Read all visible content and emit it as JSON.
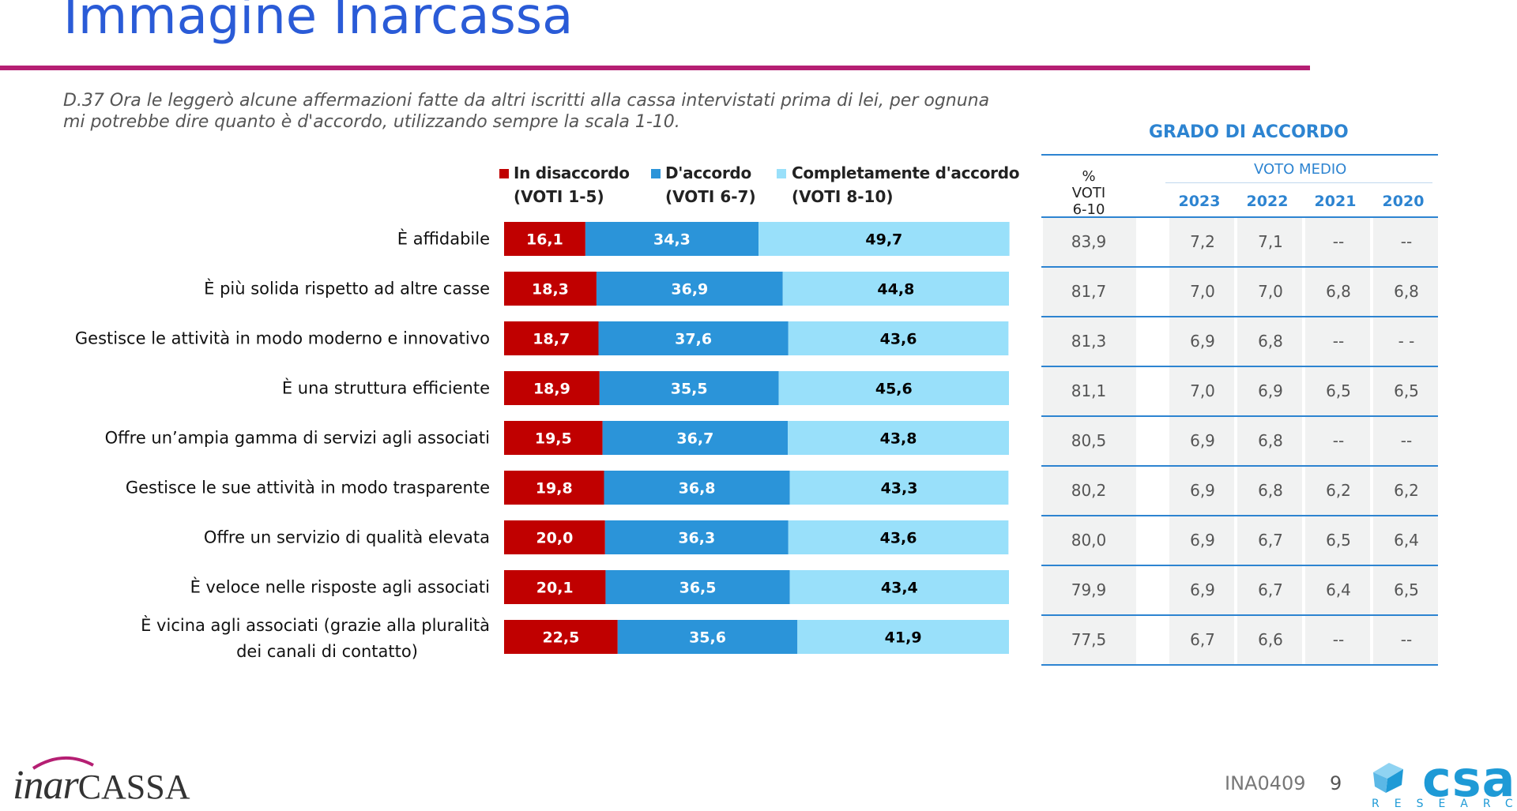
{
  "header": {
    "title": "Immagine Inarcassa",
    "question": "D.37  Ora le leggerò alcune affermazioni fatte da altri iscritti alla cassa intervistati prima di lei, per ognuna mi potrebbe dire quanto è d'accordo, utilizzando sempre la scala 1-10."
  },
  "colors": {
    "disaccordo": "#c00000",
    "accordo": "#2b94d9",
    "completamente": "#99e0fa",
    "title": "#2a5bd7",
    "rule": "#b51f73",
    "table_accent": "#2d84d1"
  },
  "chart_data": {
    "type": "bar",
    "orientation": "horizontal",
    "stacked": true,
    "categories": [
      "È affidabile",
      "È più solida rispetto ad altre casse",
      "Gestisce le attività in modo moderno e innovativo",
      "È una struttura efficiente",
      "Offre un’ampia gamma di servizi agli associati",
      "Gestisce le sue attività in modo trasparente",
      "Offre un servizio di qualità elevata",
      "È veloce nelle risposte agli associati",
      "È vicina agli associati (grazie alla pluralità dei canali di contatto)"
    ],
    "category_lines": [
      [
        "È affidabile"
      ],
      [
        "È più solida rispetto ad altre casse"
      ],
      [
        "Gestisce le attività in modo moderno e innovativo"
      ],
      [
        "È una struttura efficiente"
      ],
      [
        "Offre un’ampia gamma di servizi agli associati"
      ],
      [
        "Gestisce le sue attività in modo trasparente"
      ],
      [
        "Offre un servizio di qualità elevata"
      ],
      [
        "È veloce nelle risposte agli associati"
      ],
      [
        "È vicina agli associati (grazie alla pluralità",
        "dei canali di contatto)"
      ]
    ],
    "series": [
      {
        "name": "In disaccordo",
        "sublabel": "(VOTI 1-5)",
        "values": [
          16.1,
          18.3,
          18.7,
          18.9,
          19.5,
          19.8,
          20.0,
          20.1,
          22.5
        ],
        "labels": [
          "16,1",
          "18,3",
          "18,7",
          "18,9",
          "19,5",
          "19,8",
          "20,0",
          "20,1",
          "22,5"
        ]
      },
      {
        "name": "D'accordo",
        "sublabel": "(VOTI 6-7)",
        "values": [
          34.3,
          36.9,
          37.6,
          35.5,
          36.7,
          36.8,
          36.3,
          36.5,
          35.6
        ],
        "labels": [
          "34,3",
          "36,9",
          "37,6",
          "35,5",
          "36,7",
          "36,8",
          "36,3",
          "36,5",
          "35,6"
        ]
      },
      {
        "name": "Completamente d'accordo",
        "sublabel": "(VOTI 8-10)",
        "values": [
          49.7,
          44.8,
          43.6,
          45.6,
          43.8,
          43.3,
          43.6,
          43.4,
          41.9
        ],
        "labels": [
          "49,7",
          "44,8",
          "43,6",
          "45,6",
          "43,8",
          "43,3",
          "43,6",
          "43,4",
          "41,9"
        ]
      }
    ],
    "xlim": [
      0,
      100
    ],
    "legend": "top"
  },
  "table": {
    "title": "GRADO DI ACCORDO",
    "pct_header": [
      "% VOTI",
      "6-10"
    ],
    "voto_medio_header": "VOTO MEDIO",
    "years": [
      "2023",
      "2022",
      "2021",
      "2020"
    ],
    "rows": [
      {
        "pct": "83,9",
        "vals": [
          "7,2",
          "7,1",
          "--",
          "--"
        ]
      },
      {
        "pct": "81,7",
        "vals": [
          "7,0",
          "7,0",
          "6,8",
          "6,8"
        ]
      },
      {
        "pct": "81,3",
        "vals": [
          "6,9",
          "6,8",
          "--",
          "- -"
        ]
      },
      {
        "pct": "81,1",
        "vals": [
          "7,0",
          "6,9",
          "6,5",
          "6,5"
        ]
      },
      {
        "pct": "80,5",
        "vals": [
          "6,9",
          "6,8",
          "--",
          "--"
        ]
      },
      {
        "pct": "80,2",
        "vals": [
          "6,9",
          "6,8",
          "6,2",
          "6,2"
        ]
      },
      {
        "pct": "80,0",
        "vals": [
          "6,9",
          "6,7",
          "6,5",
          "6,4"
        ]
      },
      {
        "pct": "79,9",
        "vals": [
          "6,9",
          "6,7",
          "6,4",
          "6,5"
        ]
      },
      {
        "pct": "77,5",
        "vals": [
          "6,7",
          "6,6",
          "--",
          "--"
        ]
      }
    ]
  },
  "footer": {
    "logo": "inarcassa",
    "code": "INA0409",
    "page": "9",
    "csa_logo": "csa",
    "csa_sub": "RESEARCH"
  }
}
